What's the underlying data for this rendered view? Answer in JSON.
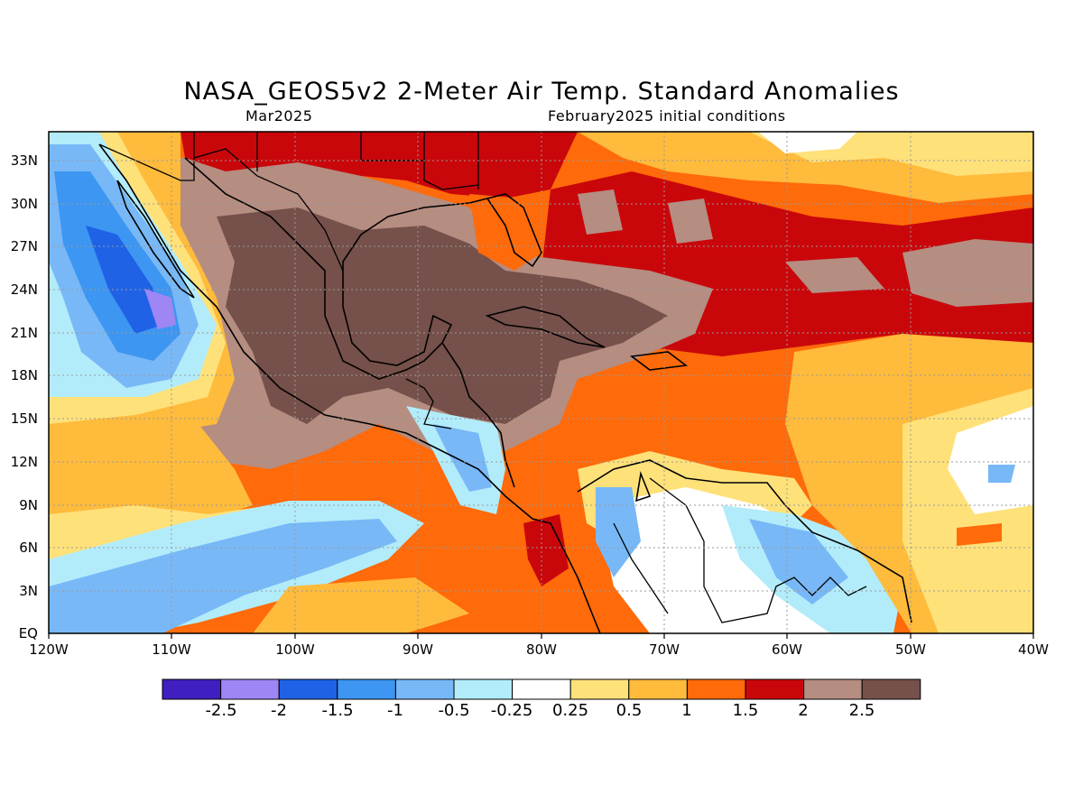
{
  "header": {
    "title": "NASA_GEOS5v2 2-Meter Air Temp. Standard Anomalies",
    "subtitle_left": "Mar2025",
    "subtitle_right": "February2025 initial conditions"
  },
  "map": {
    "lat_labels": [
      "33N",
      "30N",
      "27N",
      "24N",
      "21N",
      "18N",
      "15N",
      "12N",
      "9N",
      "6N",
      "3N",
      "EQ"
    ],
    "lon_labels": [
      "120W",
      "110W",
      "100W",
      "90W",
      "80W",
      "70W",
      "60W",
      "50W",
      "40W"
    ],
    "lat_range": [
      0,
      35
    ],
    "lon_range": [
      -120,
      -40
    ],
    "grid": "dotted"
  },
  "colorbar": {
    "colors": [
      "#3f1fbf",
      "#9f86f5",
      "#1f62e6",
      "#3c96f2",
      "#78b8f7",
      "#b2ecfa",
      "#ffffff",
      "#ffe17a",
      "#ffbb3c",
      "#ff6a0a",
      "#c9070b",
      "#b58d81",
      "#76504a"
    ],
    "labels": [
      "-2.5",
      "-2",
      "-1.5",
      "-1",
      "-0.5",
      "-0.25",
      "0.25",
      "0.5",
      "1",
      "1.5",
      "2",
      "2.5"
    ]
  }
}
